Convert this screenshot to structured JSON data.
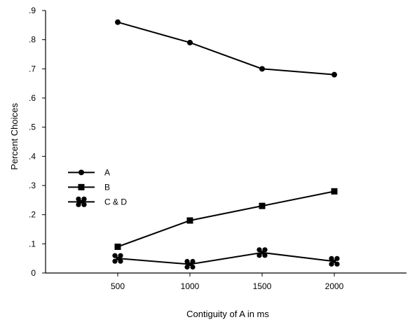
{
  "chart_data": {
    "type": "line",
    "title": "",
    "xlabel": "Contiguity of A in ms",
    "ylabel": "Percent Choices",
    "x": [
      500,
      1000,
      1500,
      2000
    ],
    "x_tick_labels": [
      "500",
      "1000",
      "1500",
      "2000"
    ],
    "xlim": [
      0,
      2500
    ],
    "ylim": [
      0,
      0.9
    ],
    "y_ticks": [
      0,
      0.1,
      0.2,
      0.3,
      0.4,
      0.5,
      0.6,
      0.7,
      0.8,
      0.9
    ],
    "y_tick_labels": [
      "0",
      ".1",
      ".2",
      ".3",
      ".4",
      ".5",
      ".6",
      ".7",
      ".8",
      ".9"
    ],
    "grid": false,
    "legend_position": "middle-left",
    "series": [
      {
        "name": "A",
        "marker": "circle",
        "values": [
          0.86,
          0.79,
          0.7,
          0.68
        ]
      },
      {
        "name": "B",
        "marker": "square",
        "values": [
          0.09,
          0.18,
          0.23,
          0.28
        ]
      },
      {
        "name": "C & D",
        "marker": "cross",
        "values": [
          0.05,
          0.03,
          0.07,
          0.04
        ]
      }
    ]
  }
}
